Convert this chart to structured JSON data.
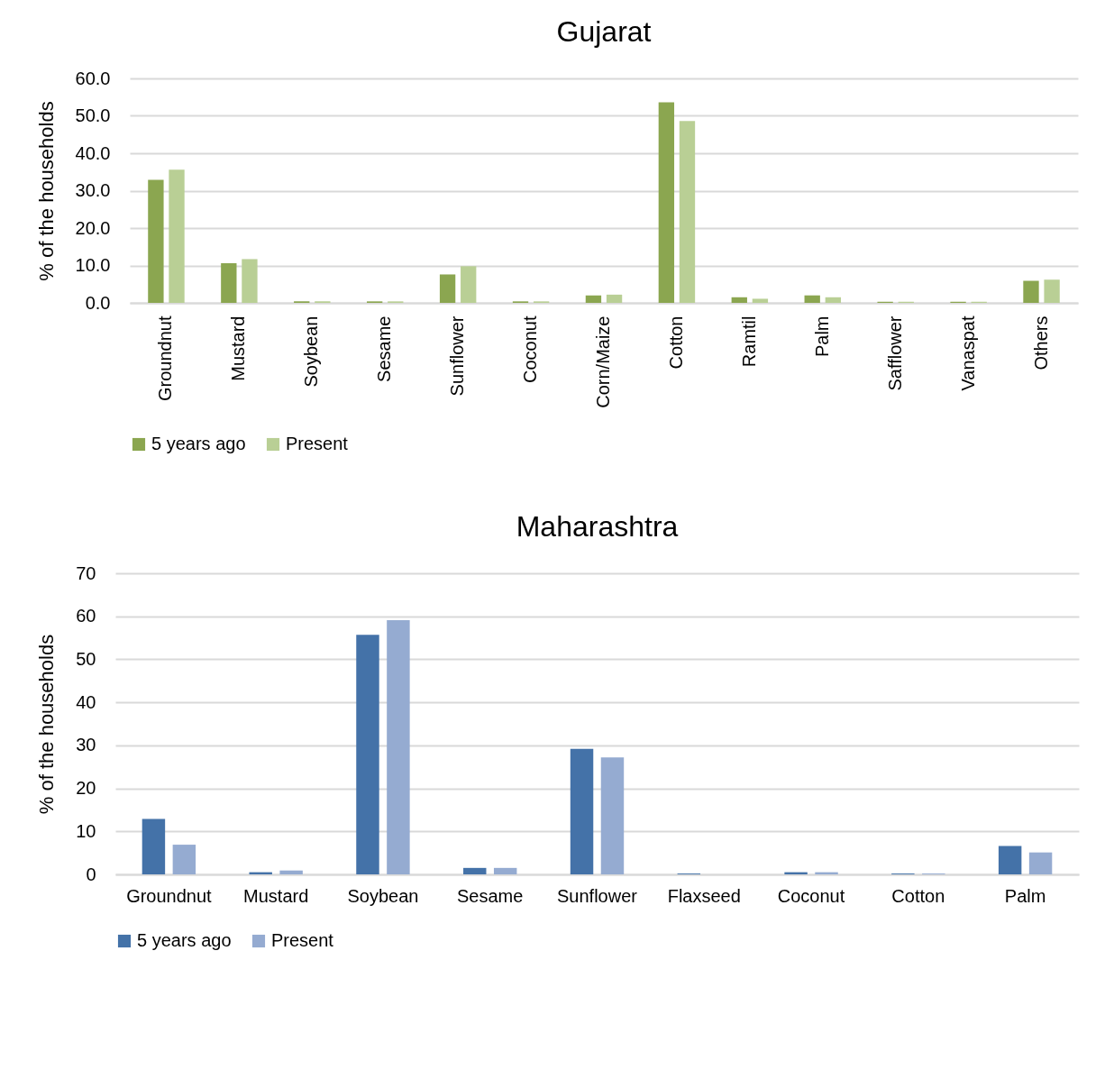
{
  "chart_data": [
    {
      "type": "bar",
      "title": "Gujarat",
      "ylabel": "% of the households",
      "categories": [
        "Groundnut",
        "Mustard",
        "Soybean",
        "Sesame",
        "Sunflower",
        "Coconut",
        "Corn/Maize",
        "Cotton",
        "Ramtil",
        "Palm",
        "Safflower",
        "Vanaspat",
        "Others"
      ],
      "series": [
        {
          "name": "5 years ago",
          "color": "#8ba650",
          "values": [
            32.9,
            10.6,
            0.4,
            0.4,
            7.6,
            0.4,
            2.0,
            53.6,
            1.5,
            2.0,
            0.3,
            0.3,
            5.9
          ]
        },
        {
          "name": "Present",
          "color": "#b9cf95",
          "values": [
            35.6,
            11.7,
            0.4,
            0.4,
            9.8,
            0.4,
            2.2,
            48.6,
            1.1,
            1.5,
            0.3,
            0.3,
            6.2
          ]
        }
      ],
      "ylim": [
        0,
        60
      ],
      "yticks": [
        {
          "value": 0,
          "label": "0.0"
        },
        {
          "value": 10,
          "label": "10.0"
        },
        {
          "value": 20,
          "label": "20.0"
        },
        {
          "value": 30,
          "label": "30.0"
        },
        {
          "value": 40,
          "label": "40.0"
        },
        {
          "value": 50,
          "label": "50.0"
        },
        {
          "value": 60,
          "label": "60.0"
        }
      ],
      "grid": "y",
      "legend": "bottom"
    },
    {
      "type": "bar",
      "title": "Maharashtra",
      "ylabel": "% of the households",
      "categories": [
        "Groundnut",
        "Mustard",
        "Soybean",
        "Sesame",
        "Sunflower",
        "Flaxseed",
        "Coconut",
        "Cotton",
        "Palm"
      ],
      "series": [
        {
          "name": "5 years ago",
          "color": "#4472a8",
          "values": [
            12.9,
            0.5,
            55.7,
            1.5,
            29.2,
            0.2,
            0.5,
            0.2,
            6.6
          ]
        },
        {
          "name": "Present",
          "color": "#95abd1",
          "values": [
            6.9,
            0.9,
            59.1,
            1.5,
            27.2,
            0,
            0.5,
            0.2,
            5.1
          ]
        }
      ],
      "ylim": [
        0,
        70
      ],
      "yticks": [
        0,
        10,
        20,
        30,
        40,
        50,
        60,
        70
      ],
      "grid": "y",
      "legend": "bottom"
    }
  ]
}
